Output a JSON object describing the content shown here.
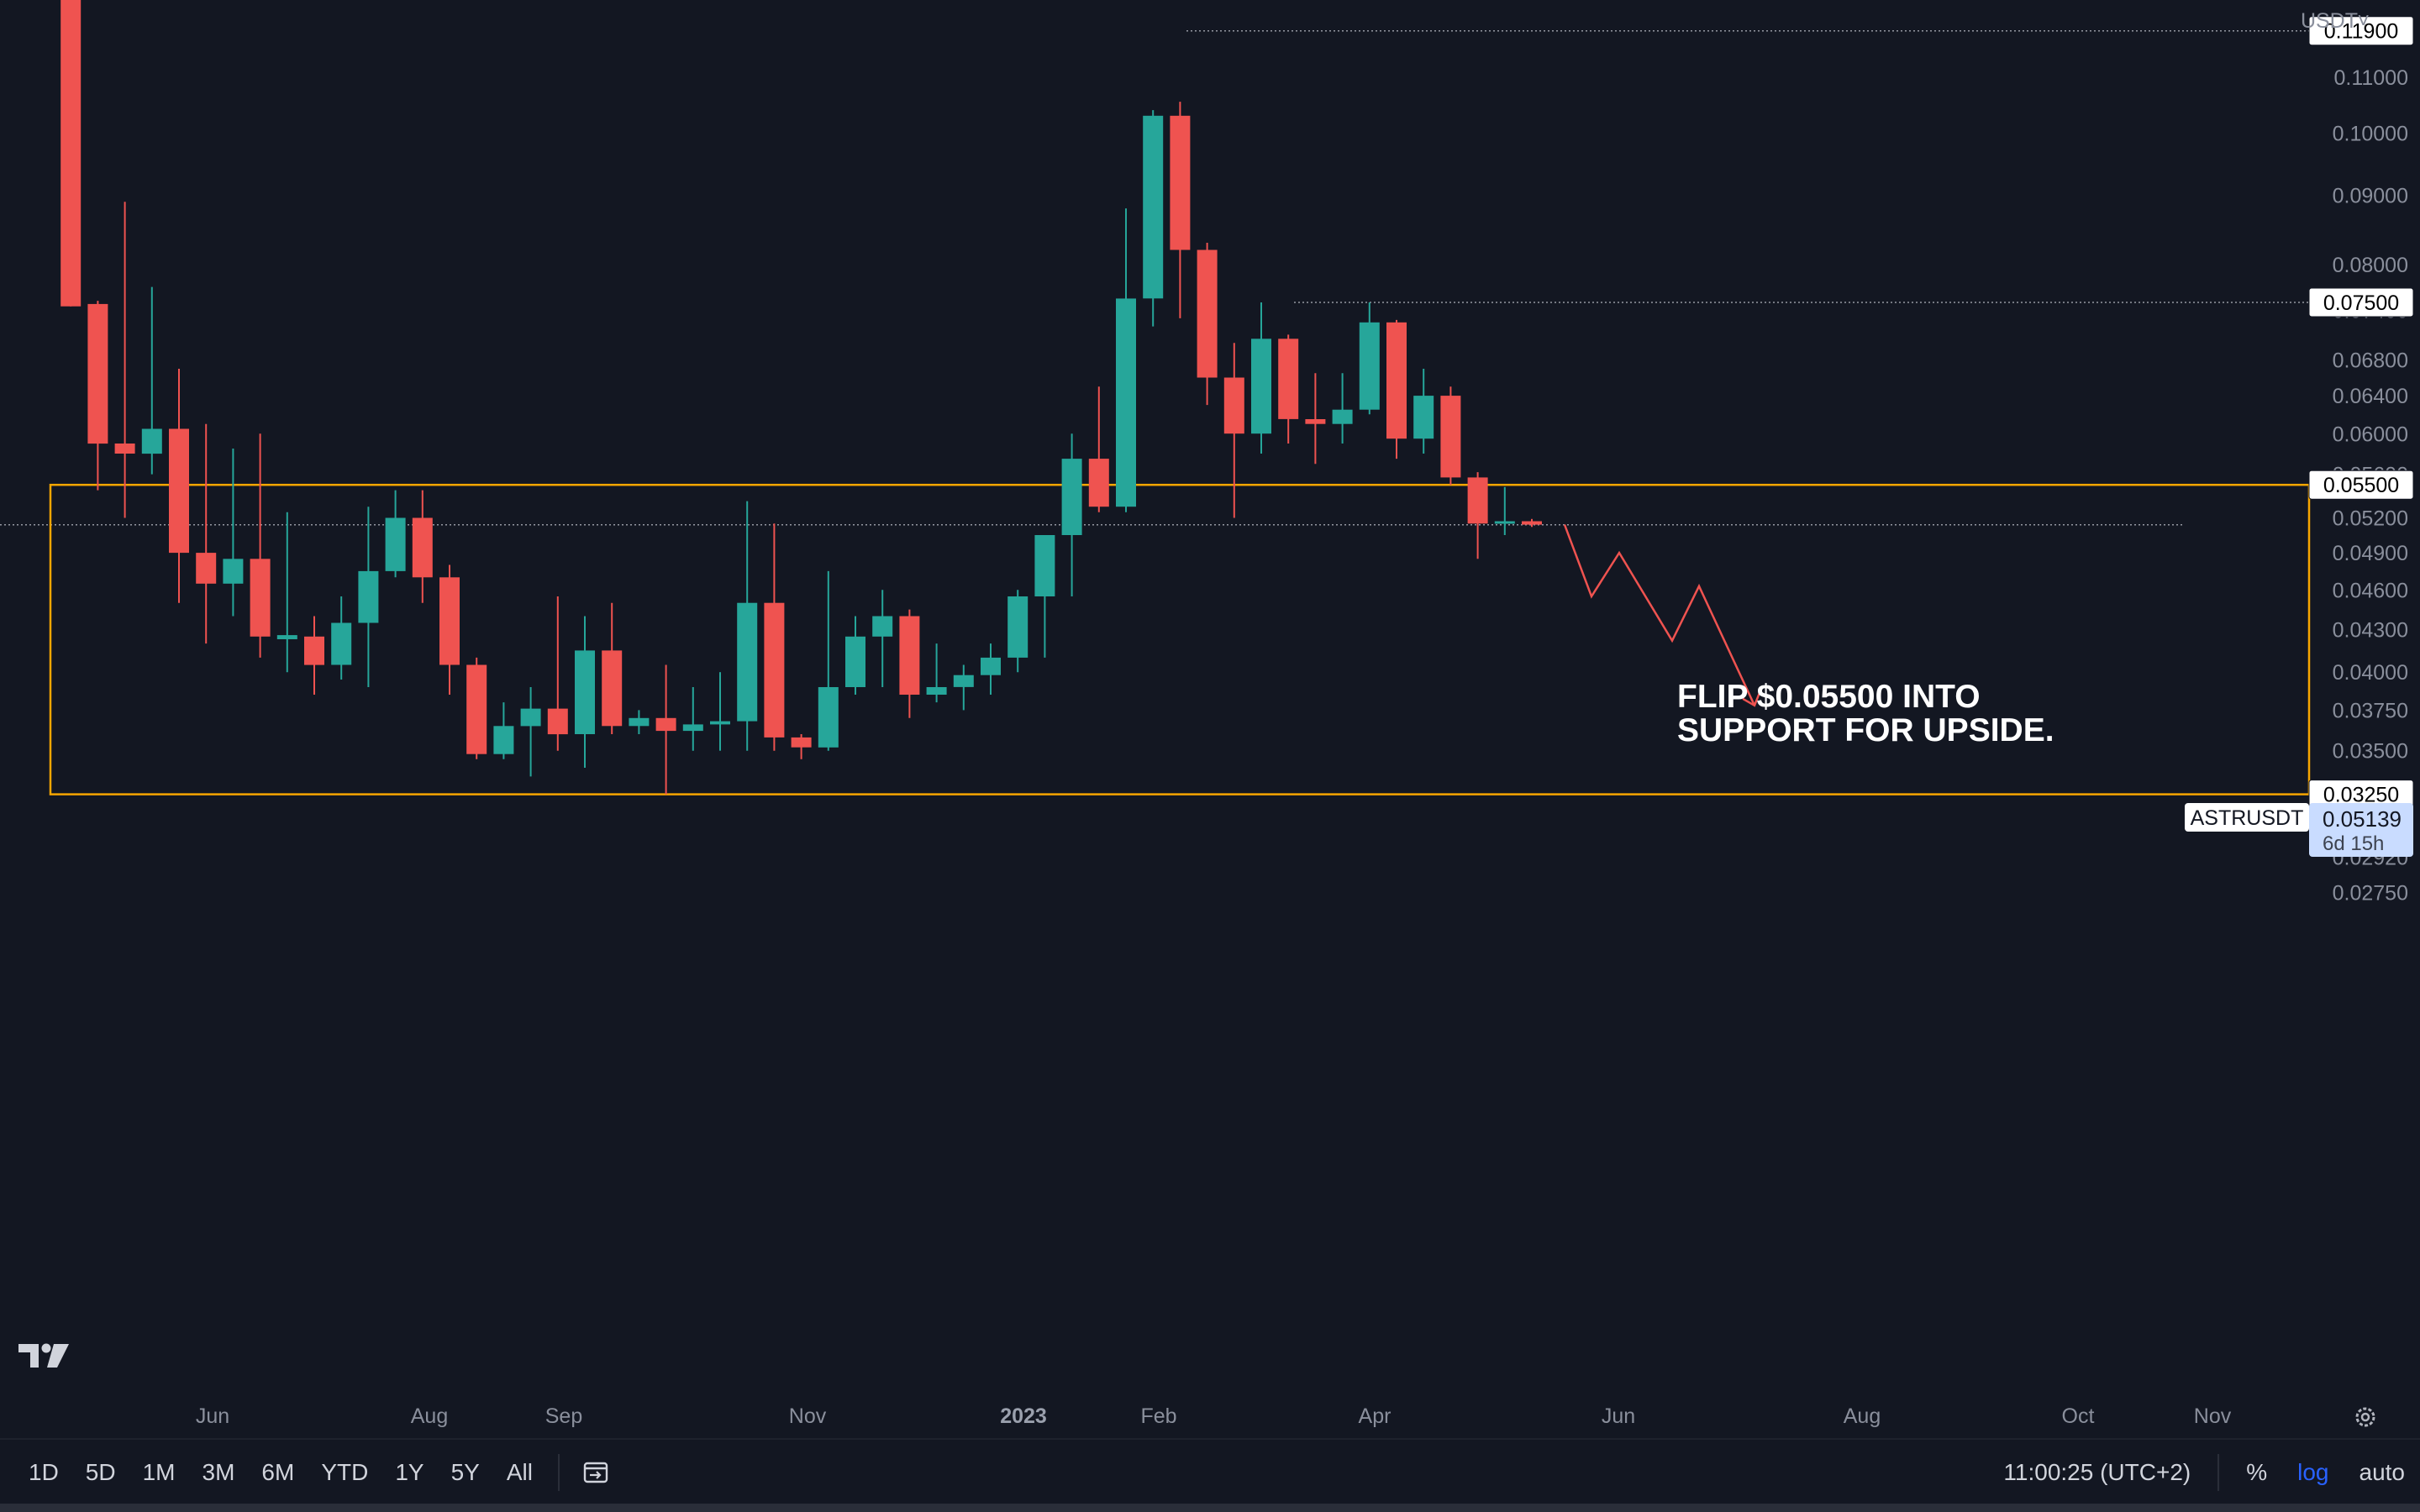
{
  "currency_menu": "USDT",
  "y_axis_labels": [
    "0.11000",
    "0.10000",
    "0.09000",
    "0.08000",
    "0.07400",
    "0.06800",
    "0.06400",
    "0.06000",
    "0.05600",
    "0.05200",
    "0.04900",
    "0.04600",
    "0.04300",
    "0.04000",
    "0.03750",
    "0.03500",
    "0.03250",
    "0.03100",
    "0.02920",
    "0.02750"
  ],
  "x_axis_labels": [
    "Jun",
    "Aug",
    "Sep",
    "Nov",
    "2023",
    "Feb",
    "Apr",
    "Jun",
    "Aug",
    "Oct",
    "Nov"
  ],
  "levels": [
    "0.11900",
    "0.07500",
    "0.05500",
    "0.03250"
  ],
  "symbol": "ASTRUSDT",
  "last_price": "0.05139",
  "countdown": "6d 15h",
  "annotation_lines": [
    "FLIP $0.05500 INTO",
    "SUPPORT FOR UPSIDE."
  ],
  "bottom_bar": {
    "ranges": [
      "1D",
      "5D",
      "1M",
      "3M",
      "6M",
      "YTD",
      "1Y",
      "5Y",
      "All"
    ],
    "time": "11:00:25 (UTC+2)",
    "percent": "%",
    "log": "log",
    "auto": "auto"
  },
  "colors": {
    "up": "#26a69a",
    "down": "#ef5350",
    "zone": "#f7a600",
    "background": "#131722",
    "projection": "#ef5350"
  },
  "chart_data": {
    "type": "candlestick",
    "scale": "log",
    "ylim": [
      0.0265,
      0.135
    ],
    "candles": [
      {
        "o": 0.145,
        "h": 0.16,
        "l": 0.133,
        "c": 0.134
      },
      {
        "o": 0.133,
        "h": 0.134,
        "l": 0.0745,
        "c": 0.0745
      },
      {
        "o": 0.0748,
        "h": 0.0752,
        "l": 0.0545,
        "c": 0.059
      },
      {
        "o": 0.059,
        "h": 0.089,
        "l": 0.052,
        "c": 0.058
      },
      {
        "o": 0.058,
        "h": 0.077,
        "l": 0.056,
        "c": 0.0605
      },
      {
        "o": 0.0605,
        "h": 0.067,
        "l": 0.045,
        "c": 0.049
      },
      {
        "o": 0.049,
        "h": 0.061,
        "l": 0.042,
        "c": 0.0465
      },
      {
        "o": 0.0465,
        "h": 0.0585,
        "l": 0.044,
        "c": 0.0485
      },
      {
        "o": 0.0485,
        "h": 0.06,
        "l": 0.041,
        "c": 0.0425
      },
      {
        "o": 0.0423,
        "h": 0.0525,
        "l": 0.04,
        "c": 0.0426
      },
      {
        "o": 0.0425,
        "h": 0.044,
        "l": 0.0385,
        "c": 0.0405
      },
      {
        "o": 0.0405,
        "h": 0.0455,
        "l": 0.0395,
        "c": 0.0435
      },
      {
        "o": 0.0435,
        "h": 0.053,
        "l": 0.039,
        "c": 0.0475
      },
      {
        "o": 0.0475,
        "h": 0.0545,
        "l": 0.047,
        "c": 0.052
      },
      {
        "o": 0.052,
        "h": 0.0545,
        "l": 0.045,
        "c": 0.047
      },
      {
        "o": 0.047,
        "h": 0.048,
        "l": 0.0385,
        "c": 0.0405
      },
      {
        "o": 0.0405,
        "h": 0.041,
        "l": 0.0345,
        "c": 0.0348
      },
      {
        "o": 0.0348,
        "h": 0.038,
        "l": 0.0345,
        "c": 0.0365
      },
      {
        "o": 0.0365,
        "h": 0.039,
        "l": 0.0335,
        "c": 0.0376
      },
      {
        "o": 0.0376,
        "h": 0.0455,
        "l": 0.035,
        "c": 0.036
      },
      {
        "o": 0.036,
        "h": 0.044,
        "l": 0.034,
        "c": 0.0415
      },
      {
        "o": 0.0415,
        "h": 0.045,
        "l": 0.036,
        "c": 0.0365
      },
      {
        "o": 0.0365,
        "h": 0.0375,
        "l": 0.036,
        "c": 0.037
      },
      {
        "o": 0.037,
        "h": 0.0405,
        "l": 0.0325,
        "c": 0.0362
      },
      {
        "o": 0.0362,
        "h": 0.039,
        "l": 0.035,
        "c": 0.0366
      },
      {
        "o": 0.0366,
        "h": 0.04,
        "l": 0.035,
        "c": 0.0368
      },
      {
        "o": 0.0368,
        "h": 0.0535,
        "l": 0.035,
        "c": 0.045
      },
      {
        "o": 0.045,
        "h": 0.0515,
        "l": 0.035,
        "c": 0.0358
      },
      {
        "o": 0.0358,
        "h": 0.036,
        "l": 0.0345,
        "c": 0.0352
      },
      {
        "o": 0.0352,
        "h": 0.0475,
        "l": 0.035,
        "c": 0.039
      },
      {
        "o": 0.039,
        "h": 0.044,
        "l": 0.0385,
        "c": 0.0425
      },
      {
        "o": 0.0425,
        "h": 0.046,
        "l": 0.039,
        "c": 0.044
      },
      {
        "o": 0.044,
        "h": 0.0445,
        "l": 0.037,
        "c": 0.0385
      },
      {
        "o": 0.0385,
        "h": 0.042,
        "l": 0.038,
        "c": 0.039
      },
      {
        "o": 0.039,
        "h": 0.0405,
        "l": 0.0375,
        "c": 0.0398
      },
      {
        "o": 0.0398,
        "h": 0.042,
        "l": 0.0385,
        "c": 0.041
      },
      {
        "o": 0.041,
        "h": 0.046,
        "l": 0.04,
        "c": 0.0455
      },
      {
        "o": 0.0455,
        "h": 0.05,
        "l": 0.041,
        "c": 0.0505
      },
      {
        "o": 0.0505,
        "h": 0.06,
        "l": 0.0455,
        "c": 0.0575
      },
      {
        "o": 0.0575,
        "h": 0.065,
        "l": 0.0525,
        "c": 0.053
      },
      {
        "o": 0.053,
        "h": 0.088,
        "l": 0.0525,
        "c": 0.0755
      },
      {
        "o": 0.0755,
        "h": 0.104,
        "l": 0.072,
        "c": 0.103
      },
      {
        "o": 0.103,
        "h": 0.1055,
        "l": 0.073,
        "c": 0.082
      },
      {
        "o": 0.082,
        "h": 0.083,
        "l": 0.063,
        "c": 0.066
      },
      {
        "o": 0.066,
        "h": 0.07,
        "l": 0.052,
        "c": 0.06
      },
      {
        "o": 0.06,
        "h": 0.075,
        "l": 0.058,
        "c": 0.0705
      },
      {
        "o": 0.0705,
        "h": 0.071,
        "l": 0.059,
        "c": 0.0615
      },
      {
        "o": 0.0615,
        "h": 0.0665,
        "l": 0.057,
        "c": 0.061
      },
      {
        "o": 0.061,
        "h": 0.0665,
        "l": 0.059,
        "c": 0.0625
      },
      {
        "o": 0.0625,
        "h": 0.075,
        "l": 0.062,
        "c": 0.0725
      },
      {
        "o": 0.0725,
        "h": 0.0728,
        "l": 0.0575,
        "c": 0.0595
      },
      {
        "o": 0.0595,
        "h": 0.067,
        "l": 0.058,
        "c": 0.064
      },
      {
        "o": 0.064,
        "h": 0.065,
        "l": 0.055,
        "c": 0.0557
      },
      {
        "o": 0.0557,
        "h": 0.0562,
        "l": 0.0485,
        "c": 0.0515
      },
      {
        "o": 0.0515,
        "h": 0.0548,
        "l": 0.0505,
        "c": 0.0517
      },
      {
        "o": 0.0517,
        "h": 0.0519,
        "l": 0.0512,
        "c": 0.0514
      }
    ],
    "projection_path": [
      0.0514,
      0.0455,
      0.049,
      0.0422,
      0.0463,
      0.0378
    ],
    "horizontal_levels": [
      0.119,
      0.075,
      0.055,
      0.0325
    ],
    "zone": [
      0.0325,
      0.055
    ],
    "last_price": 0.05139
  }
}
